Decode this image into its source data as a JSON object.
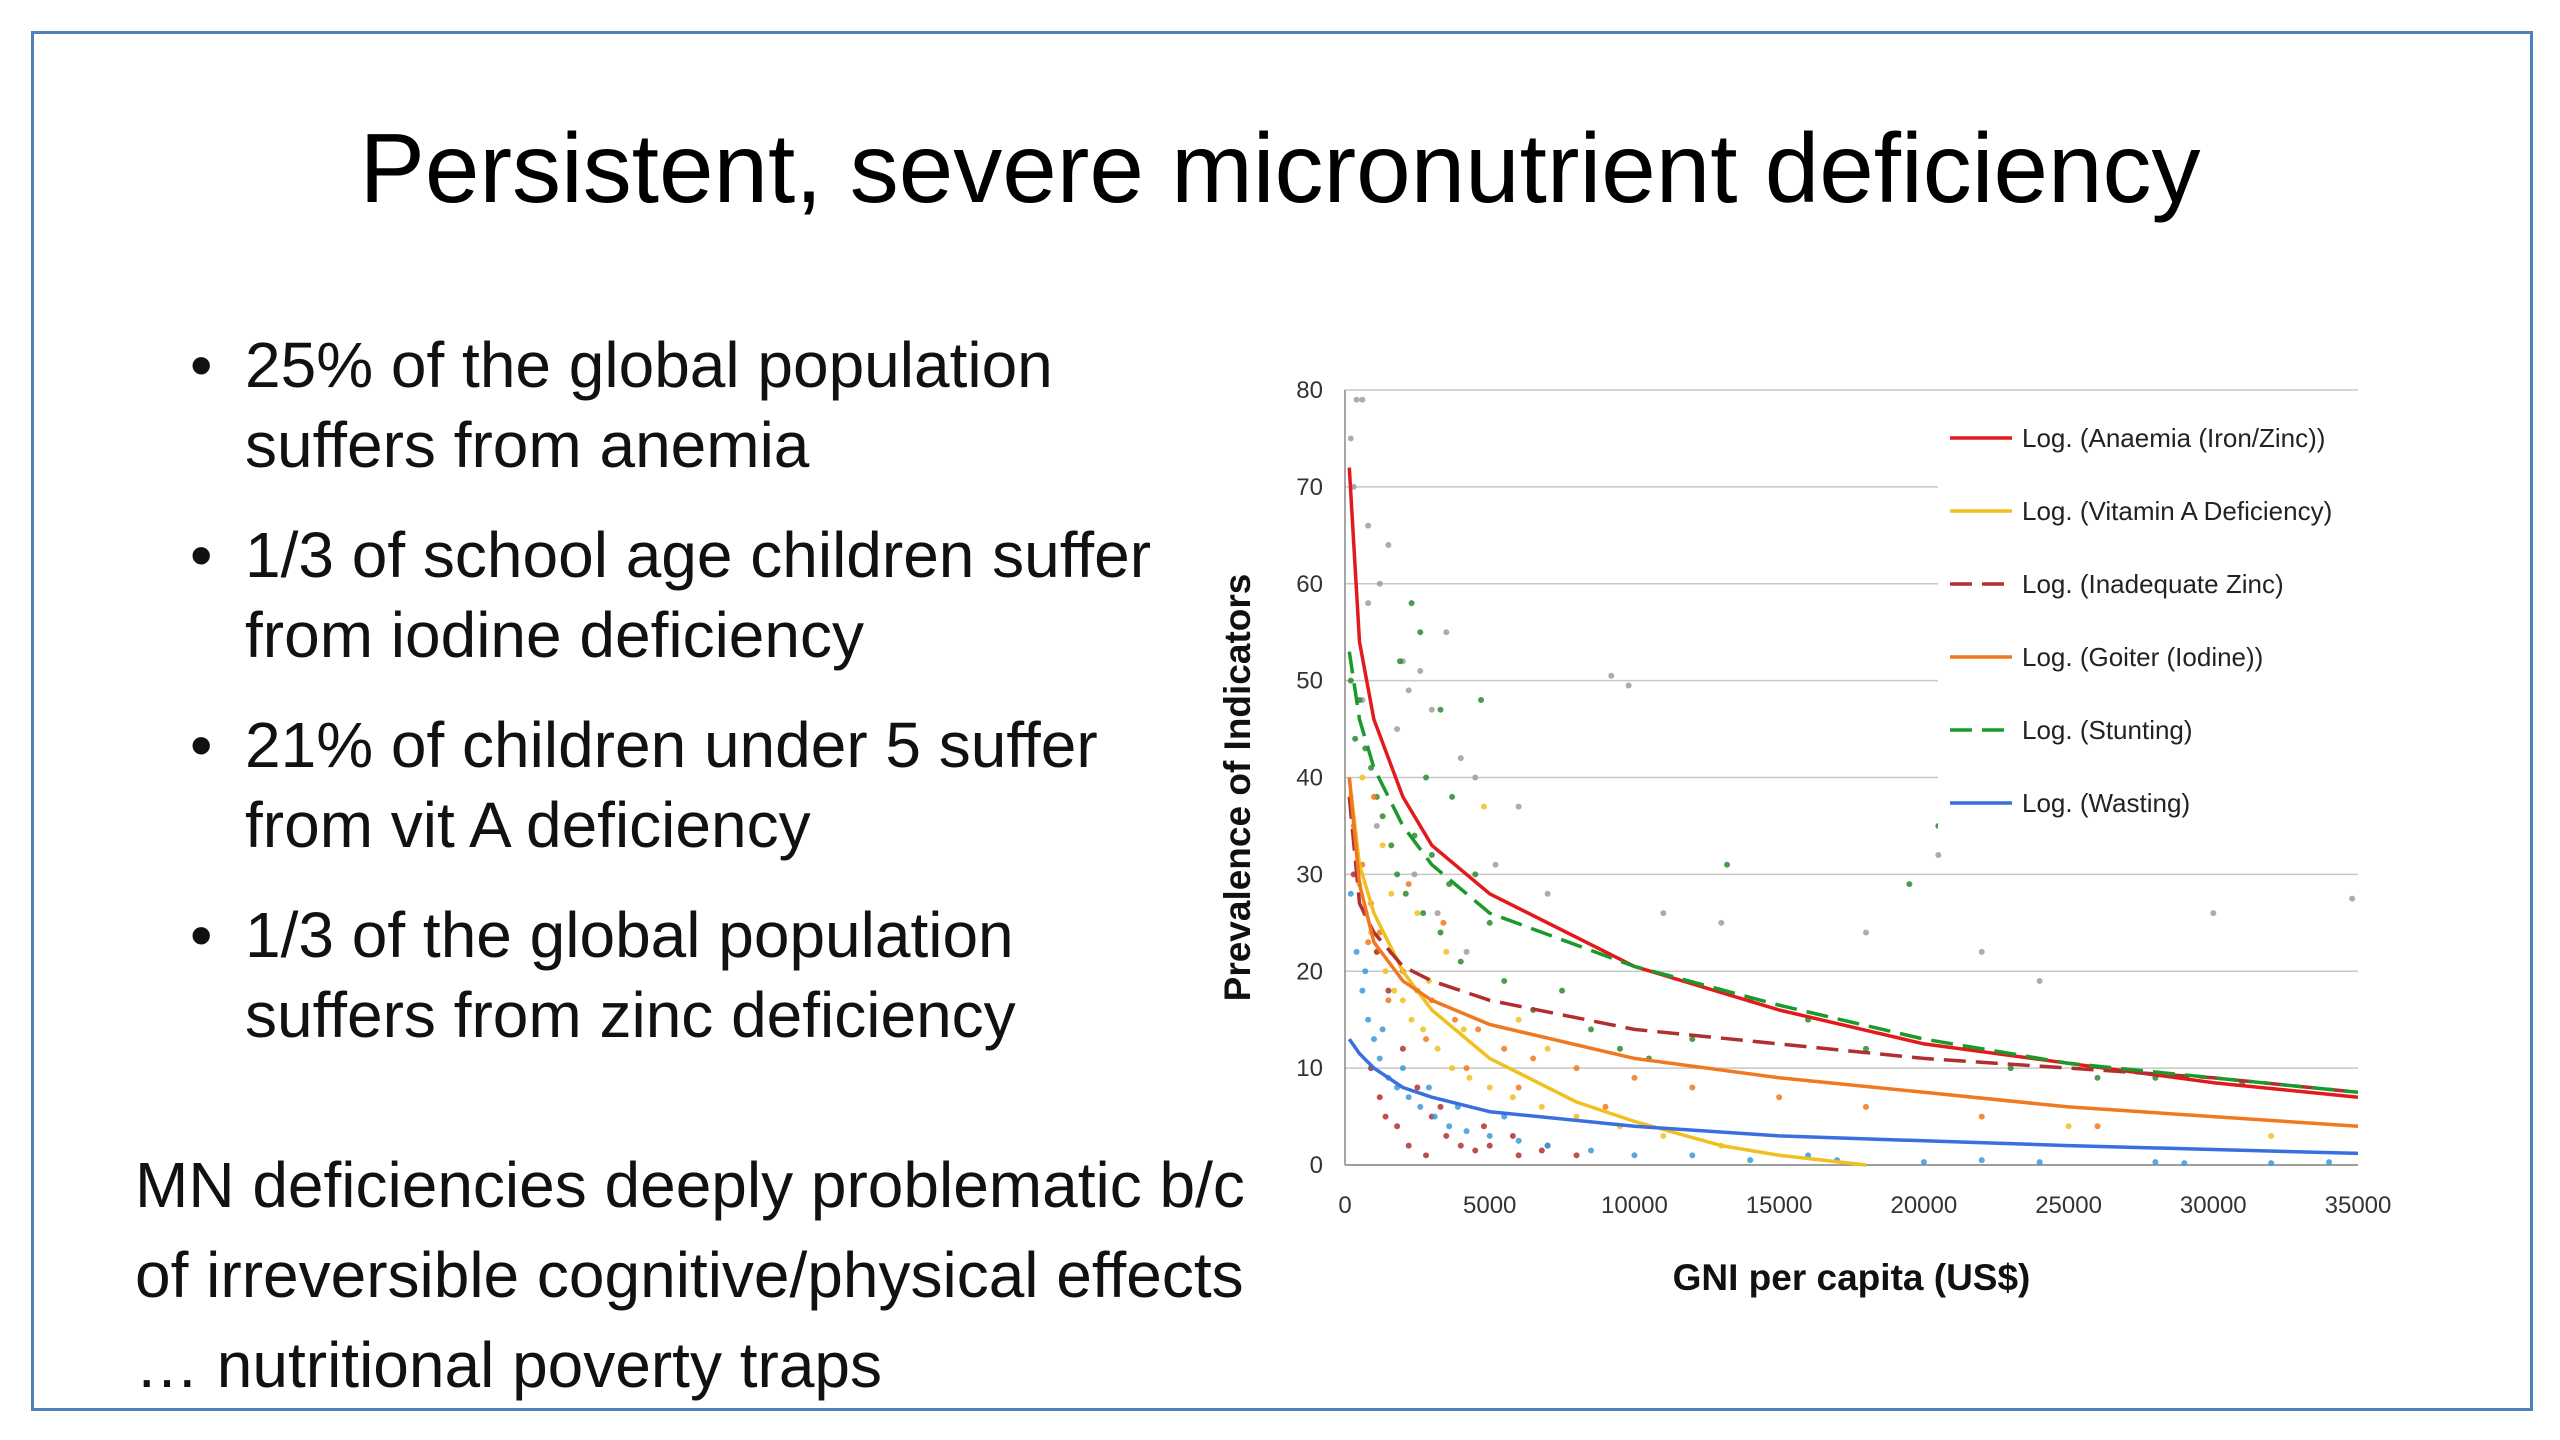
{
  "slide": {
    "title": "Persistent, severe micronutrient deficiency",
    "bullets": [
      "25% of the global population suffers from anemia",
      "1/3 of school age children suffer from iodine deficiency",
      "21% of children under 5 suffer from vit A deficiency",
      "1/3 of the global population suffers from zinc deficiency"
    ],
    "note": "MN deficiencies deeply problematic b/c of irreversible cognitive/physical effects … nutritional poverty traps"
  },
  "chart_data": {
    "type": "scatter",
    "xlabel": "GNI per capita (US$)",
    "ylabel": "Prevalence of Indicators",
    "xlim": [
      0,
      35000
    ],
    "ylim": [
      0,
      80
    ],
    "xticks": [
      0,
      5000,
      10000,
      15000,
      20000,
      25000,
      30000,
      35000
    ],
    "yticks": [
      0,
      10,
      20,
      30,
      40,
      50,
      60,
      70,
      80
    ],
    "grid": "horizontal",
    "legend_position": "top-right",
    "trendlines": [
      {
        "name": "Log. (Anaemia (Iron/Zinc))",
        "color": "#e31a1c",
        "dash": false,
        "points": [
          [
            150,
            72
          ],
          [
            500,
            54
          ],
          [
            1000,
            46
          ],
          [
            2000,
            38
          ],
          [
            3000,
            33
          ],
          [
            5000,
            28
          ],
          [
            10000,
            20.5
          ],
          [
            15000,
            16
          ],
          [
            20000,
            12.5
          ],
          [
            25000,
            10.5
          ],
          [
            30000,
            8.5
          ],
          [
            35000,
            7
          ]
        ]
      },
      {
        "name": "Log. (Vitamin A Deficiency)",
        "color": "#f0c020",
        "dash": false,
        "points": [
          [
            150,
            40
          ],
          [
            500,
            31
          ],
          [
            1000,
            26
          ],
          [
            2000,
            20
          ],
          [
            3000,
            16
          ],
          [
            5000,
            11
          ],
          [
            8000,
            6.5
          ],
          [
            10000,
            4.5
          ],
          [
            13000,
            2
          ],
          [
            15000,
            1
          ],
          [
            18000,
            0
          ]
        ]
      },
      {
        "name": "Log. (Inadequate Zinc)",
        "color": "#b03030",
        "dash": true,
        "points": [
          [
            150,
            38
          ],
          [
            500,
            27
          ],
          [
            1000,
            24
          ],
          [
            2000,
            20.5
          ],
          [
            3000,
            19
          ],
          [
            5000,
            17
          ],
          [
            10000,
            14
          ],
          [
            15000,
            12.5
          ],
          [
            20000,
            11
          ],
          [
            25000,
            10
          ],
          [
            30000,
            9
          ],
          [
            35000,
            7.5
          ]
        ]
      },
      {
        "name": "Log. (Goiter (Iodine))",
        "color": "#f07820",
        "dash": false,
        "points": [
          [
            150,
            40
          ],
          [
            500,
            29
          ],
          [
            1000,
            23
          ],
          [
            2000,
            19
          ],
          [
            3000,
            17
          ],
          [
            5000,
            14.5
          ],
          [
            10000,
            11
          ],
          [
            15000,
            9
          ],
          [
            20000,
            7.5
          ],
          [
            25000,
            6
          ],
          [
            30000,
            5
          ],
          [
            35000,
            4
          ]
        ]
      },
      {
        "name": "Log. (Stunting)",
        "color": "#1a9a2a",
        "dash": true,
        "points": [
          [
            150,
            53
          ],
          [
            500,
            46
          ],
          [
            1000,
            41
          ],
          [
            2000,
            35
          ],
          [
            3000,
            31
          ],
          [
            5000,
            26
          ],
          [
            10000,
            20.5
          ],
          [
            15000,
            16.5
          ],
          [
            20000,
            13
          ],
          [
            25000,
            10.5
          ],
          [
            30000,
            9
          ],
          [
            35000,
            7.5
          ]
        ]
      },
      {
        "name": "Log. (Wasting)",
        "color": "#3a6fe0",
        "dash": false,
        "points": [
          [
            150,
            13
          ],
          [
            500,
            11.5
          ],
          [
            1000,
            10
          ],
          [
            2000,
            8
          ],
          [
            3000,
            7
          ],
          [
            5000,
            5.5
          ],
          [
            10000,
            4
          ],
          [
            15000,
            3
          ],
          [
            20000,
            2.5
          ],
          [
            25000,
            2
          ],
          [
            30000,
            1.6
          ],
          [
            35000,
            1.2
          ]
        ]
      }
    ],
    "scatter_series": [
      {
        "color": "#9e9e9e",
        "points": [
          [
            200,
            75
          ],
          [
            400,
            79
          ],
          [
            600,
            79
          ],
          [
            300,
            70
          ],
          [
            800,
            66
          ],
          [
            1200,
            60
          ],
          [
            1500,
            64
          ],
          [
            2000,
            52
          ],
          [
            2200,
            49
          ],
          [
            2600,
            51
          ],
          [
            3000,
            47
          ],
          [
            3500,
            55
          ],
          [
            4000,
            42
          ],
          [
            4500,
            40
          ],
          [
            5200,
            31
          ],
          [
            6000,
            37
          ],
          [
            7000,
            28
          ],
          [
            9200,
            50.5
          ],
          [
            9800,
            49.5
          ],
          [
            11000,
            26
          ],
          [
            13000,
            25
          ],
          [
            18000,
            24
          ],
          [
            20500,
            32
          ],
          [
            22000,
            22
          ],
          [
            24000,
            19
          ],
          [
            30000,
            26
          ],
          [
            34800,
            27.5
          ],
          [
            800,
            58
          ],
          [
            1800,
            45
          ],
          [
            2400,
            30
          ],
          [
            3200,
            26
          ],
          [
            4200,
            22
          ],
          [
            1100,
            35
          ],
          [
            600,
            48
          ]
        ]
      },
      {
        "color": "#2e8b2e",
        "points": [
          [
            200,
            50
          ],
          [
            350,
            44
          ],
          [
            500,
            48
          ],
          [
            700,
            43
          ],
          [
            900,
            41
          ],
          [
            1100,
            38
          ],
          [
            1300,
            36
          ],
          [
            1600,
            33
          ],
          [
            1800,
            30
          ],
          [
            2100,
            28
          ],
          [
            2400,
            34
          ],
          [
            2700,
            26
          ],
          [
            3000,
            32
          ],
          [
            3300,
            24
          ],
          [
            3600,
            29
          ],
          [
            4000,
            21
          ],
          [
            4500,
            30
          ],
          [
            5000,
            25
          ],
          [
            5500,
            19
          ],
          [
            6500,
            16
          ],
          [
            7500,
            18
          ],
          [
            8500,
            14
          ],
          [
            9500,
            12
          ],
          [
            10500,
            11
          ],
          [
            12000,
            13
          ],
          [
            13200,
            31
          ],
          [
            14000,
            17
          ],
          [
            16000,
            15
          ],
          [
            18000,
            12
          ],
          [
            19500,
            29
          ],
          [
            20500,
            35
          ],
          [
            23000,
            10
          ],
          [
            26000,
            9
          ],
          [
            28000,
            9
          ],
          [
            31000,
            8.5
          ],
          [
            2300,
            58
          ],
          [
            2600,
            55
          ],
          [
            3300,
            47
          ],
          [
            4700,
            48
          ],
          [
            1900,
            52
          ],
          [
            2800,
            40
          ],
          [
            3700,
            38
          ]
        ]
      },
      {
        "color": "#f0c020",
        "points": [
          [
            200,
            38
          ],
          [
            350,
            33
          ],
          [
            500,
            29
          ],
          [
            700,
            26
          ],
          [
            900,
            24
          ],
          [
            1100,
            22
          ],
          [
            1400,
            20
          ],
          [
            1700,
            18
          ],
          [
            2000,
            17
          ],
          [
            2300,
            15
          ],
          [
            2700,
            14
          ],
          [
            3200,
            12
          ],
          [
            3700,
            10
          ],
          [
            4300,
            9
          ],
          [
            5000,
            8
          ],
          [
            5800,
            7
          ],
          [
            6800,
            6
          ],
          [
            8000,
            5
          ],
          [
            9500,
            4
          ],
          [
            11000,
            3
          ],
          [
            13000,
            2
          ],
          [
            600,
            40
          ],
          [
            1300,
            33
          ],
          [
            2500,
            26
          ],
          [
            3500,
            22
          ],
          [
            4800,
            37
          ],
          [
            6000,
            15
          ],
          [
            7000,
            12
          ],
          [
            1600,
            28
          ],
          [
            2900,
            19
          ],
          [
            4100,
            14
          ],
          [
            25000,
            4
          ],
          [
            32000,
            3
          ]
        ]
      },
      {
        "color": "#f07820",
        "points": [
          [
            300,
            35
          ],
          [
            600,
            31
          ],
          [
            900,
            27
          ],
          [
            1200,
            24
          ],
          [
            1600,
            22
          ],
          [
            2000,
            20
          ],
          [
            2500,
            18
          ],
          [
            3000,
            17
          ],
          [
            3800,
            15
          ],
          [
            4600,
            14
          ],
          [
            5500,
            12
          ],
          [
            6500,
            11
          ],
          [
            8000,
            10
          ],
          [
            10000,
            9
          ],
          [
            12000,
            8
          ],
          [
            15000,
            7
          ],
          [
            18000,
            6
          ],
          [
            22000,
            5
          ],
          [
            26000,
            4
          ],
          [
            800,
            23
          ],
          [
            1500,
            17
          ],
          [
            2800,
            13
          ],
          [
            4200,
            10
          ],
          [
            6000,
            8
          ],
          [
            9000,
            6
          ],
          [
            1000,
            38
          ],
          [
            2200,
            29
          ],
          [
            3400,
            25
          ]
        ]
      },
      {
        "color": "#b03030",
        "points": [
          [
            300,
            30
          ],
          [
            700,
            26
          ],
          [
            1100,
            22
          ],
          [
            1500,
            18
          ],
          [
            2000,
            12
          ],
          [
            2500,
            8
          ],
          [
            3000,
            5
          ],
          [
            3500,
            3
          ],
          [
            4000,
            2
          ],
          [
            4500,
            1.5
          ],
          [
            5000,
            2
          ],
          [
            6000,
            1
          ],
          [
            7000,
            2
          ],
          [
            8000,
            1
          ],
          [
            1200,
            7
          ],
          [
            1800,
            4
          ],
          [
            2200,
            2
          ],
          [
            2800,
            1
          ],
          [
            3300,
            6
          ],
          [
            4800,
            4
          ],
          [
            5800,
            3
          ],
          [
            6800,
            1.5
          ],
          [
            900,
            10
          ],
          [
            1400,
            5
          ]
        ]
      },
      {
        "color": "#3a9ad9",
        "points": [
          [
            200,
            28
          ],
          [
            400,
            22
          ],
          [
            600,
            18
          ],
          [
            800,
            15
          ],
          [
            1000,
            13
          ],
          [
            1200,
            11
          ],
          [
            1500,
            9
          ],
          [
            1800,
            8
          ],
          [
            2200,
            7
          ],
          [
            2600,
            6
          ],
          [
            3100,
            5
          ],
          [
            3600,
            4
          ],
          [
            4200,
            3.5
          ],
          [
            5000,
            3
          ],
          [
            6000,
            2.5
          ],
          [
            7000,
            2
          ],
          [
            8500,
            1.5
          ],
          [
            10000,
            1
          ],
          [
            12000,
            1
          ],
          [
            14000,
            0.5
          ],
          [
            17000,
            0.5
          ],
          [
            20000,
            0.3
          ],
          [
            24000,
            0.3
          ],
          [
            28000,
            0.3
          ],
          [
            32000,
            0.2
          ],
          [
            700,
            20
          ],
          [
            1300,
            14
          ],
          [
            2000,
            10
          ],
          [
            2900,
            8
          ],
          [
            3900,
            6
          ],
          [
            5500,
            5
          ],
          [
            16000,
            1
          ],
          [
            22000,
            0.5
          ],
          [
            29000,
            0.2
          ],
          [
            34000,
            0.3
          ]
        ]
      }
    ]
  }
}
